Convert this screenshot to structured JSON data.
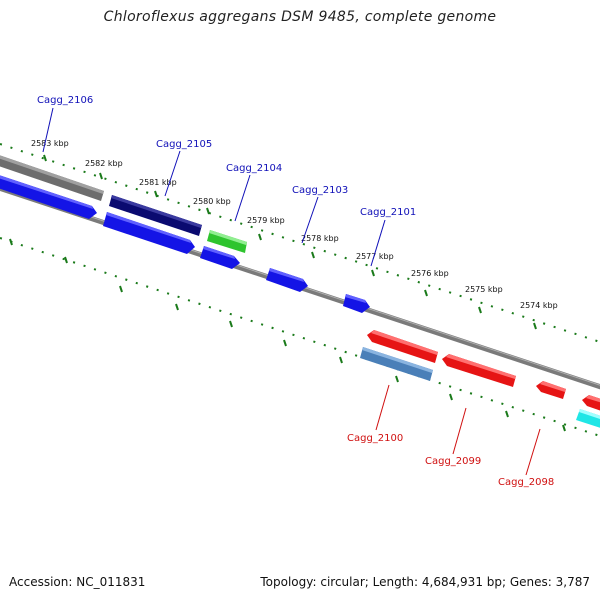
{
  "title": "Chloroflexus aggregans DSM 9485, complete genome",
  "footer": {
    "accession": "Accession: NC_011831",
    "topology": "Topology: circular; Length: 4,684,931 bp; Genes: 3,787"
  },
  "scale_labels": [
    "2583 kbp",
    "2582 kbp",
    "2581 kbp",
    "2580 kbp",
    "2579 kbp",
    "2578 kbp",
    "2577 kbp",
    "2576 kbp",
    "2575 kbp",
    "2574 kbp"
  ],
  "gene_labels_top": [
    "Cagg_2106",
    "Cagg_2105",
    "Cagg_2104",
    "Cagg_2103",
    "Cagg_2101"
  ],
  "gene_labels_bottom": [
    "Cagg_2100",
    "Cagg_2099",
    "Cagg_2098"
  ],
  "colors": {
    "backbone": "#7a7a7a",
    "tick": "#1a7a1a",
    "forward_gene": "#1414e6",
    "dark_gene": "#0a0a70",
    "green_gene": "#2ec42e",
    "reverse_gene": "#e61414",
    "steel_gene": "#4a7fb8",
    "cyan_gene": "#20e6e6",
    "top_label": "#1010b8",
    "bottom_label": "#d01010"
  }
}
